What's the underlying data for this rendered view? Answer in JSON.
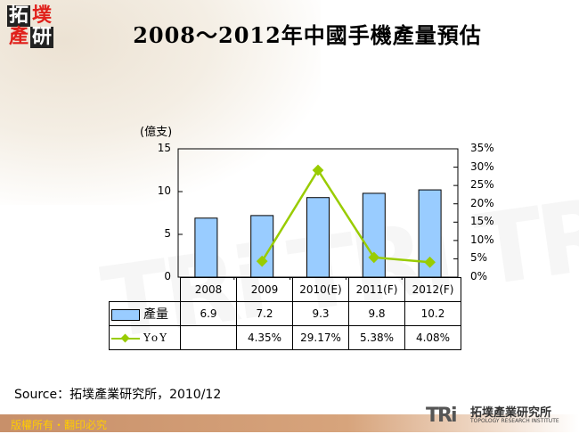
{
  "header": {
    "logo_chars": [
      "拓",
      "墣",
      "產",
      "研"
    ],
    "title": "2008～2012年中國手機產量預估"
  },
  "chart_data": {
    "type": "bar",
    "title": "2008～2012年中國手機產量預估",
    "categories": [
      "2008",
      "2009",
      "2010(E)",
      "2011(F)",
      "2012(F)"
    ],
    "ylabel": "(億支)",
    "ylim": [
      0,
      15
    ],
    "y_ticks": [
      "15",
      "10",
      "5",
      "0"
    ],
    "y2lim": [
      0,
      35
    ],
    "y2_ticks": [
      "35%",
      "30%",
      "25%",
      "20%",
      "15%",
      "10%",
      "5%",
      "0%"
    ],
    "grid": false,
    "legend_position": "data-table",
    "series": [
      {
        "name": "產量",
        "type": "bar",
        "axis": "left",
        "color": "#99CCFF",
        "values": [
          6.9,
          7.2,
          9.3,
          9.8,
          10.2
        ]
      },
      {
        "name": "YoY",
        "type": "line",
        "axis": "right",
        "color": "#99CC00",
        "marker": "diamond",
        "values": [
          null,
          4.35,
          29.17,
          5.38,
          4.08
        ]
      }
    ]
  },
  "table": {
    "header": [
      "2008",
      "2009",
      "2010(E)",
      "2011(F)",
      "2012(F)"
    ],
    "rows": [
      {
        "label": "產量",
        "cells": [
          "6.9",
          "7.2",
          "9.3",
          "9.8",
          "10.2"
        ]
      },
      {
        "label": "YoY",
        "cells": [
          "",
          "4.35%",
          "29.17%",
          "5.38%",
          "4.08%"
        ]
      }
    ]
  },
  "source": "Source：拓墣產業研究所，2010/12",
  "footer": {
    "copyright": "版權所有・翻印必究",
    "brand_mark": "TRi",
    "brand_cn": "拓墣產業研究所",
    "brand_en": "TOPOLOGY RESEARCH INSTITUTE"
  }
}
